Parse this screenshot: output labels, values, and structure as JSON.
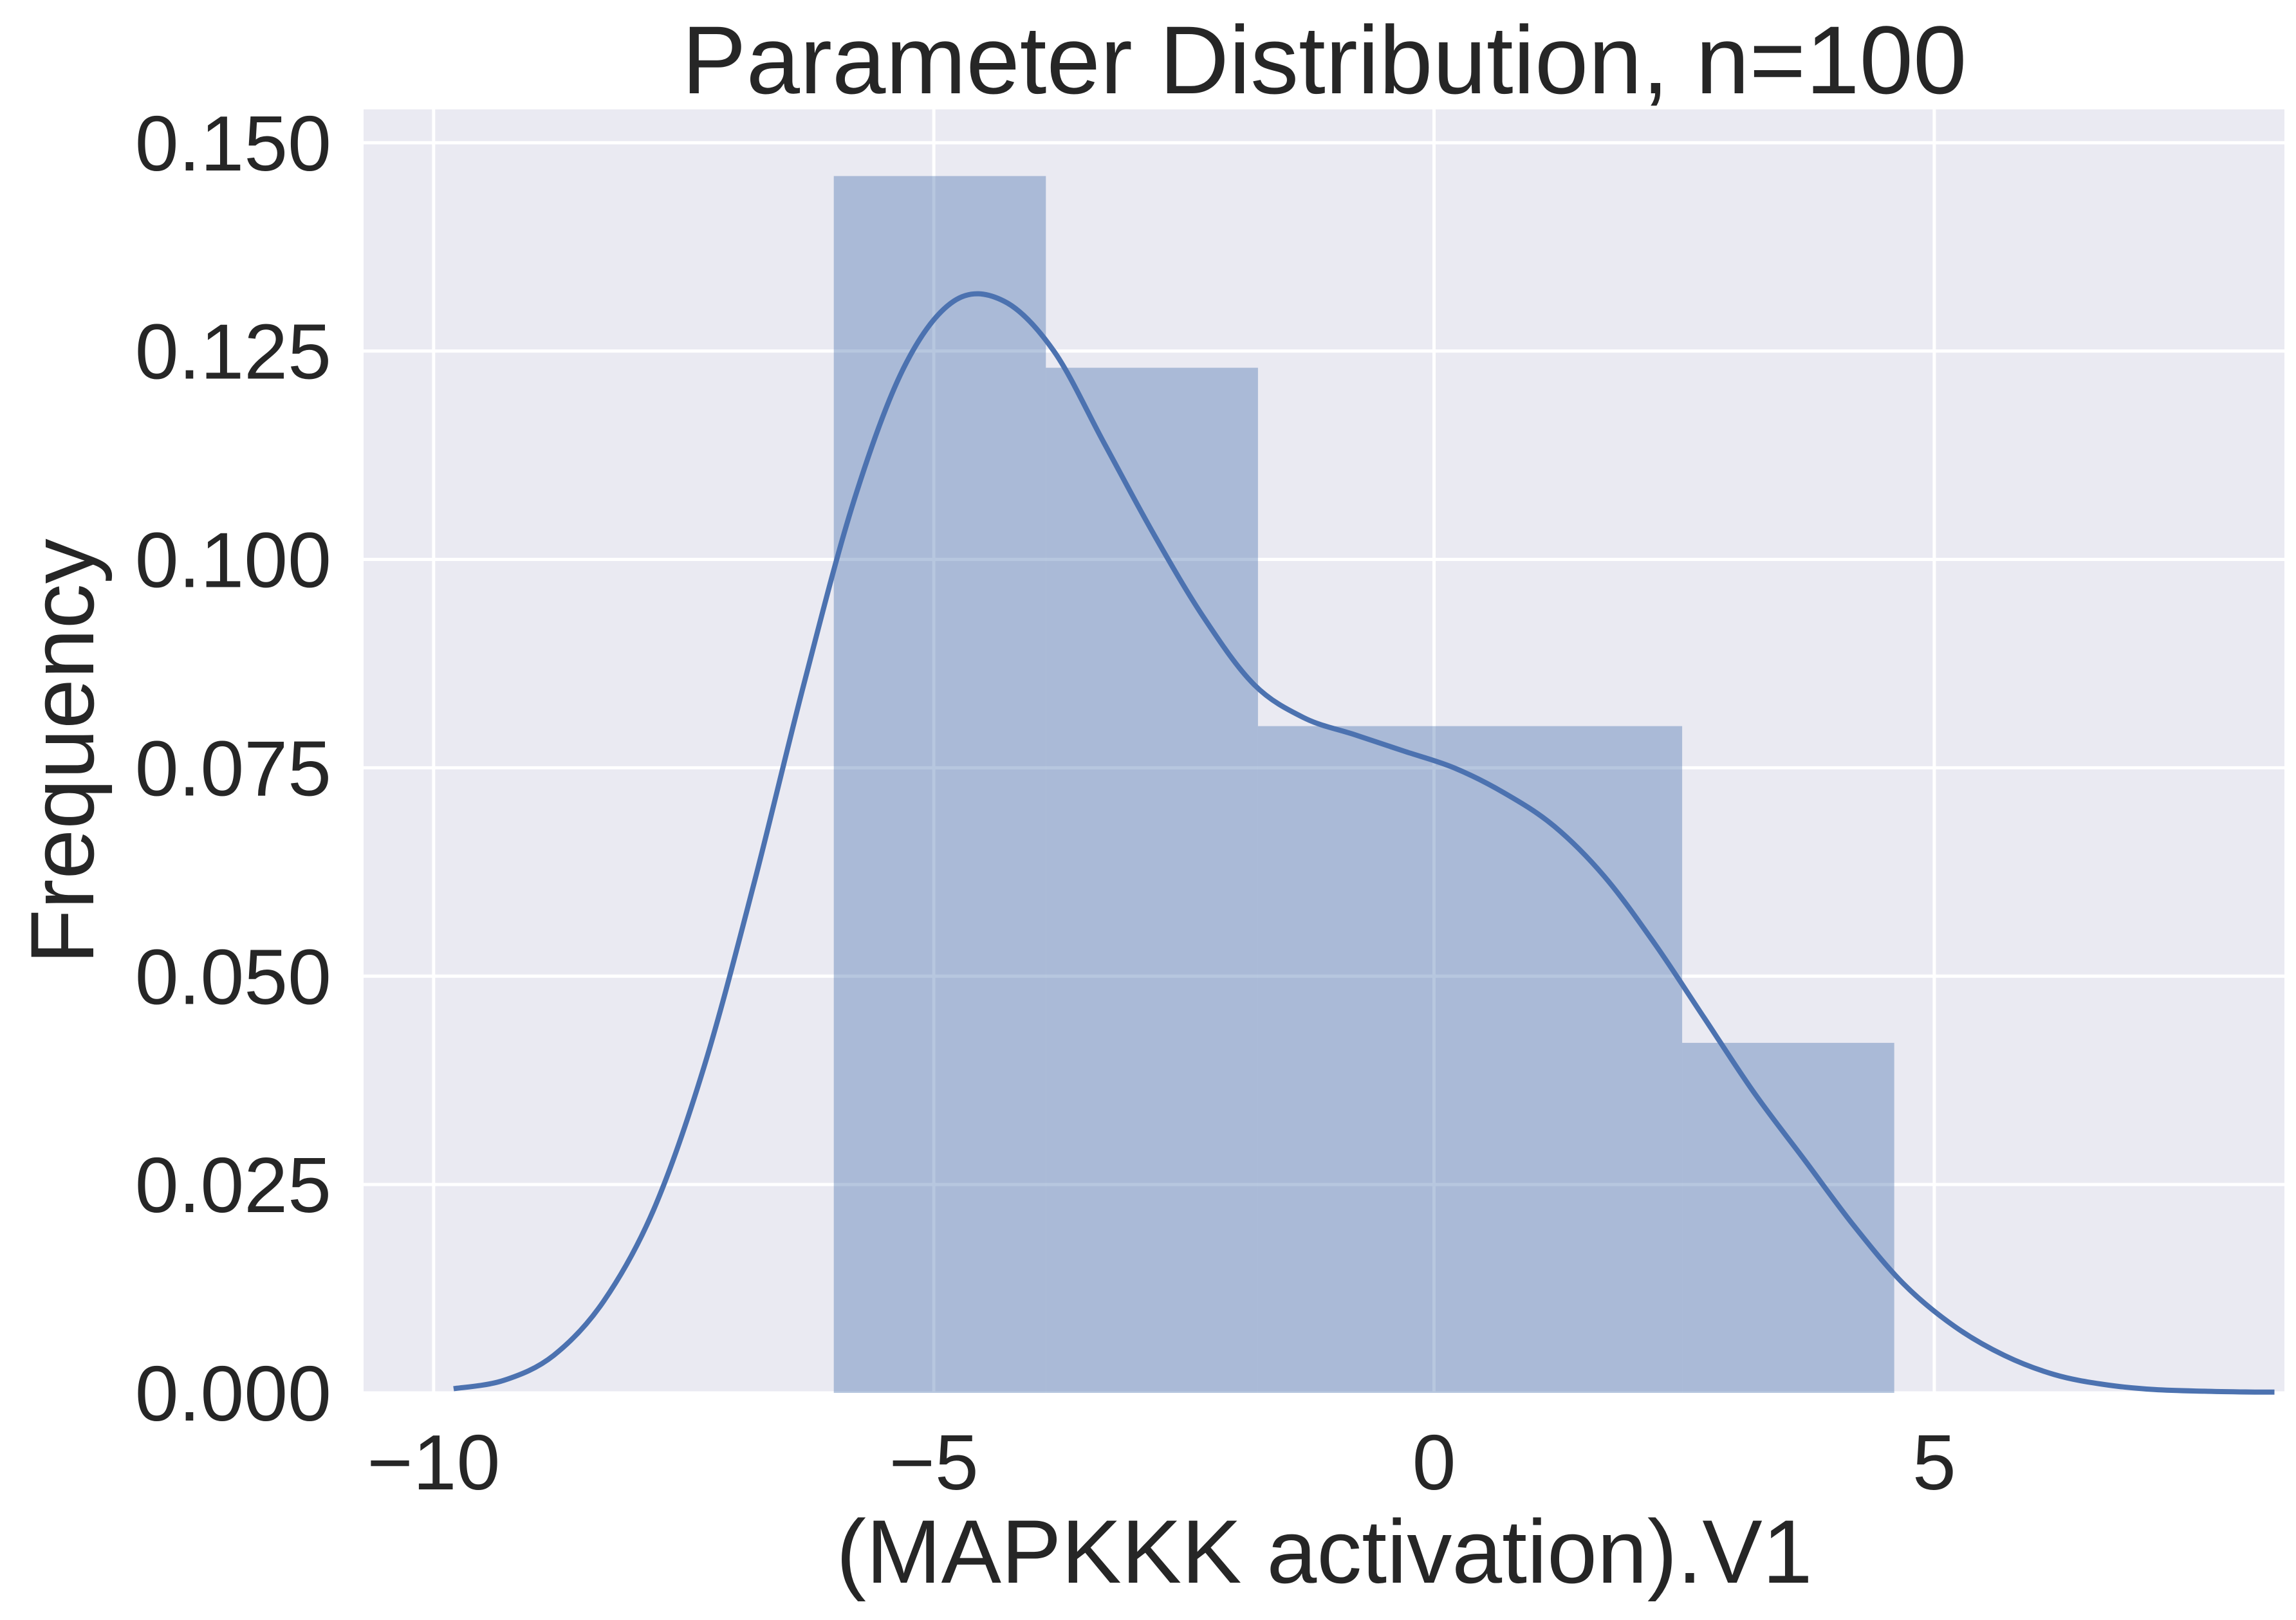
{
  "chart_data": {
    "type": "bar",
    "title": "Parameter Distribution, n=100",
    "xlabel": "(MAPKKK activation).V1",
    "ylabel": "Frequency",
    "xlim": [
      -10.7,
      8.5
    ],
    "ylim": [
      0,
      0.154
    ],
    "xticks": [
      -10,
      -5,
      0,
      5
    ],
    "xtick_labels": [
      "−10",
      "−5",
      "0",
      "5"
    ],
    "yticks": [
      0,
      0.025,
      0.05,
      0.075,
      0.1,
      0.125,
      0.15
    ],
    "ytick_labels": [
      "0.000",
      "0.025",
      "0.050",
      "0.075",
      "0.100",
      "0.125",
      "0.150"
    ],
    "grid": true,
    "histogram": {
      "bin_edges": [
        -6.0,
        -3.88,
        -1.76,
        0.36,
        2.48,
        4.6
      ],
      "values": [
        0.146,
        0.123,
        0.08,
        0.08,
        0.042
      ]
    },
    "kde": {
      "x": [
        -9.8,
        -9.3,
        -8.8,
        -8.3,
        -7.8,
        -7.3,
        -6.8,
        -6.3,
        -5.8,
        -5.3,
        -4.8,
        -4.3,
        -3.8,
        -3.3,
        -2.8,
        -2.3,
        -1.8,
        -1.3,
        -0.8,
        -0.3,
        0.2,
        0.7,
        1.2,
        1.7,
        2.2,
        2.7,
        3.2,
        3.7,
        4.2,
        4.7,
        5.2,
        5.7,
        6.2,
        6.7,
        7.2,
        7.7,
        8.2,
        8.4
      ],
      "y": [
        0.0005,
        0.0015,
        0.0045,
        0.011,
        0.022,
        0.039,
        0.061,
        0.085,
        0.107,
        0.123,
        0.131,
        0.131,
        0.125,
        0.114,
        0.103,
        0.093,
        0.085,
        0.081,
        0.079,
        0.077,
        0.075,
        0.072,
        0.068,
        0.062,
        0.054,
        0.045,
        0.036,
        0.028,
        0.02,
        0.013,
        0.008,
        0.0045,
        0.0022,
        0.001,
        0.0004,
        0.0002,
        0.0001,
        0.0001
      ]
    },
    "colors": {
      "background": "#EAEAF2",
      "grid": "#FFFFFF",
      "bars": "#4C72B0",
      "kde": "#4C72B0",
      "text": "#262626"
    }
  }
}
